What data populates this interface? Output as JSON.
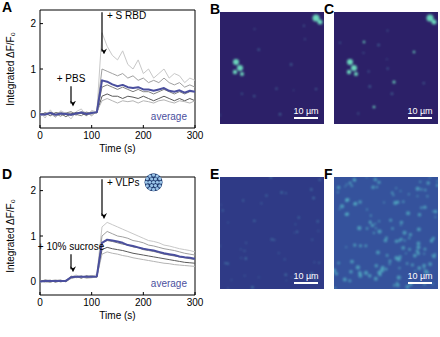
{
  "chart_data": [
    {
      "type": "line",
      "panel_label": "A",
      "x_label": "Time (s)",
      "y_label": "Integrated ΔF/F₀",
      "x": [
        0,
        10,
        20,
        30,
        40,
        50,
        60,
        70,
        80,
        90,
        100,
        110,
        120,
        130,
        140,
        150,
        160,
        170,
        180,
        190,
        200,
        210,
        220,
        230,
        240,
        250,
        260,
        270,
        280,
        290,
        300
      ],
      "xlim": [
        0,
        300
      ],
      "xticks": [
        0,
        100,
        200,
        300
      ],
      "ylim": [
        -0.3,
        2.3
      ],
      "yticks": [
        0,
        1,
        2
      ],
      "series": [
        {
          "color": "#c8c8c8",
          "values": [
            0.05,
            -0.08,
            0.1,
            -0.05,
            0.08,
            0.02,
            -0.1,
            0.06,
            0.12,
            -0.04,
            0.09,
            0.05,
            1.8,
            1.5,
            1.3,
            1.2,
            1.4,
            1.1,
            1.0,
            1.2,
            0.9,
            1.0,
            0.8,
            0.9,
            1.0,
            0.8,
            0.9,
            0.85,
            0.7,
            0.8,
            0.75
          ]
        },
        {
          "color": "#a0a0a0",
          "values": [
            -0.03,
            0.04,
            0.02,
            -0.06,
            0.05,
            0.0,
            0.03,
            -0.02,
            0.06,
            0.04,
            -0.03,
            0.07,
            1.0,
            0.95,
            0.9,
            0.85,
            0.9,
            0.8,
            0.85,
            0.75,
            0.8,
            0.7,
            0.75,
            0.7,
            0.8,
            0.7,
            0.65,
            0.7,
            0.6,
            0.65,
            0.6
          ]
        },
        {
          "color": "#808080",
          "values": [
            0.02,
            -0.02,
            0.05,
            0.01,
            -0.04,
            0.03,
            0.06,
            0.0,
            -0.03,
            0.05,
            0.02,
            0.04,
            0.6,
            0.65,
            0.6,
            0.55,
            0.6,
            0.55,
            0.5,
            0.55,
            0.5,
            0.5,
            0.45,
            0.5,
            0.55,
            0.5,
            0.45,
            0.5,
            0.45,
            0.5,
            0.5
          ]
        },
        {
          "color": "#5a5a5a",
          "values": [
            0.0,
            0.03,
            -0.03,
            0.04,
            0.02,
            -0.05,
            0.01,
            0.04,
            0.02,
            -0.02,
            0.05,
            0.03,
            0.4,
            0.45,
            0.4,
            0.4,
            0.35,
            0.4,
            0.38,
            0.35,
            0.4,
            0.35,
            0.3,
            0.35,
            0.4,
            0.35,
            0.3,
            0.35,
            0.3,
            0.35,
            0.3
          ]
        },
        {
          "color": "#b4b4b4",
          "values": [
            -0.02,
            0.01,
            0.03,
            -0.01,
            0.0,
            0.04,
            -0.03,
            0.02,
            0.05,
            0.01,
            0.0,
            0.06,
            0.3,
            0.35,
            0.3,
            0.25,
            0.3,
            0.28,
            0.3,
            0.25,
            0.3,
            0.28,
            0.25,
            0.3,
            0.32,
            0.28,
            0.25,
            0.3,
            0.28,
            0.25,
            0.3
          ]
        },
        {
          "name": "average",
          "color": "#4a4f9e",
          "values": [
            0.0,
            0.0,
            0.03,
            -0.01,
            0.02,
            0.01,
            -0.01,
            0.02,
            0.04,
            0.01,
            0.03,
            0.05,
            0.75,
            0.72,
            0.66,
            0.62,
            0.65,
            0.6,
            0.58,
            0.6,
            0.55,
            0.55,
            0.52,
            0.55,
            0.58,
            0.52,
            0.5,
            0.53,
            0.48,
            0.52,
            0.5
          ]
        }
      ],
      "annotations": [
        {
          "text": "+ PBS",
          "x": 60,
          "y": 0.62,
          "y_end": 0.15
        },
        {
          "text": "+ S RBD",
          "x": 120,
          "y": 2.25,
          "y_end": 1.3
        }
      ]
    },
    {
      "type": "line",
      "panel_label": "D",
      "x_label": "Time (s)",
      "y_label": "Integrated ΔF/F₀",
      "x": [
        0,
        10,
        20,
        30,
        40,
        50,
        60,
        70,
        80,
        90,
        100,
        110,
        120,
        130,
        140,
        150,
        160,
        170,
        180,
        190,
        200,
        210,
        220,
        230,
        240,
        250,
        260,
        270,
        280,
        290,
        300
      ],
      "xlim": [
        0,
        300
      ],
      "xticks": [
        0,
        100,
        200,
        300
      ],
      "ylim": [
        -0.3,
        2.3
      ],
      "yticks": [
        0,
        1,
        2
      ],
      "series": [
        {
          "color": "#c8c8c8",
          "values": [
            0.02,
            -0.03,
            0.01,
            0.04,
            -0.02,
            0.03,
            0.1,
            0.14,
            0.09,
            0.13,
            0.11,
            0.15,
            1.2,
            1.3,
            1.25,
            1.2,
            1.15,
            1.1,
            1.05,
            1.0,
            0.95,
            0.9,
            0.88,
            0.85,
            0.8,
            0.78,
            0.75,
            0.72,
            0.7,
            0.68,
            0.65
          ]
        },
        {
          "color": "#a0a0a0",
          "values": [
            -0.01,
            0.02,
            0.03,
            -0.02,
            0.01,
            0.0,
            0.12,
            0.08,
            0.11,
            0.1,
            0.13,
            0.09,
            1.0,
            1.1,
            1.05,
            1.0,
            0.98,
            0.95,
            0.9,
            0.88,
            0.85,
            0.8,
            0.78,
            0.75,
            0.72,
            0.7,
            0.68,
            0.65,
            0.62,
            0.6,
            0.58
          ]
        },
        {
          "color": "#808080",
          "values": [
            0.01,
            0.0,
            -0.02,
            0.02,
            0.03,
            -0.01,
            0.07,
            0.1,
            0.12,
            0.08,
            0.1,
            0.11,
            0.85,
            0.9,
            0.88,
            0.85,
            0.82,
            0.8,
            0.76,
            0.74,
            0.7,
            0.68,
            0.66,
            0.63,
            0.6,
            0.58,
            0.56,
            0.54,
            0.52,
            0.5,
            0.48
          ]
        },
        {
          "color": "#5a5a5a",
          "values": [
            0.0,
            0.03,
            0.01,
            -0.01,
            0.02,
            0.01,
            0.09,
            0.11,
            0.07,
            0.12,
            0.09,
            0.1,
            0.7,
            0.75,
            0.72,
            0.7,
            0.68,
            0.65,
            0.62,
            0.6,
            0.58,
            0.56,
            0.54,
            0.52,
            0.5,
            0.48,
            0.46,
            0.44,
            0.42,
            0.41,
            0.4
          ]
        },
        {
          "color": "#b4b4b4",
          "values": [
            -0.02,
            0.01,
            0.0,
            0.02,
            -0.01,
            0.02,
            0.06,
            0.09,
            0.1,
            0.07,
            0.08,
            0.1,
            0.6,
            0.65,
            0.62,
            0.6,
            0.57,
            0.55,
            0.52,
            0.5,
            0.48,
            0.46,
            0.44,
            0.42,
            0.4,
            0.39,
            0.37,
            0.36,
            0.35,
            0.34,
            0.33
          ]
        },
        {
          "name": "average",
          "color": "#4a4f9e",
          "values": [
            0.0,
            0.01,
            0.01,
            0.01,
            0.01,
            0.01,
            0.09,
            0.1,
            0.1,
            0.1,
            0.1,
            0.11,
            0.85,
            0.92,
            0.9,
            0.88,
            0.85,
            0.8,
            0.78,
            0.75,
            0.72,
            0.7,
            0.68,
            0.65,
            0.62,
            0.6,
            0.58,
            0.55,
            0.53,
            0.52,
            0.5
          ]
        }
      ],
      "annotations": [
        {
          "text": "+ 10% sucrose",
          "x": 60,
          "y": 0.6,
          "y_end": 0.18
        },
        {
          "text": "+ VLPs",
          "x": 120,
          "y": 2.25,
          "y_end": 1.35
        }
      ]
    }
  ],
  "images": [
    {
      "panel_label": "B",
      "scale_bar": "10 µm"
    },
    {
      "panel_label": "C",
      "scale_bar": "10 µm"
    },
    {
      "panel_label": "E",
      "scale_bar": "10 µm"
    },
    {
      "panel_label": "F",
      "scale_bar": "10 µm"
    }
  ]
}
